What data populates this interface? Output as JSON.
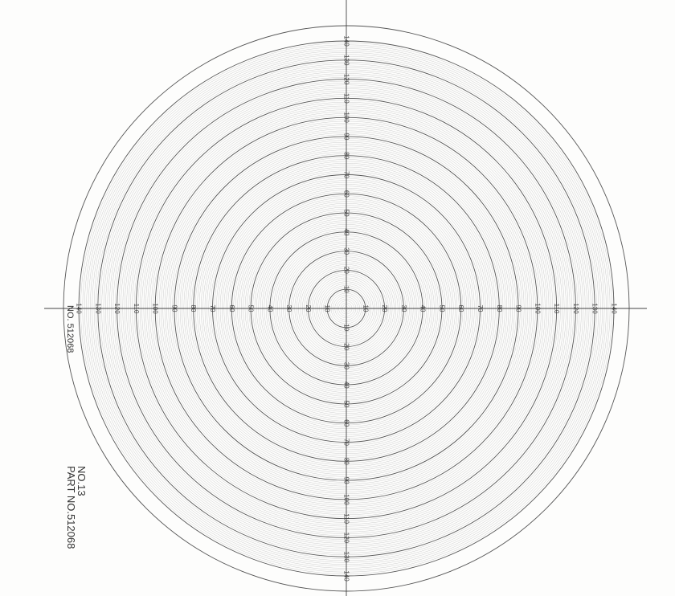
{
  "diagram": {
    "type": "concentric-circle-reticle",
    "ring_step_minor": 1,
    "ring_step_major": 10,
    "max_ring": 140,
    "major_ring_labels": [
      10,
      20,
      30,
      40,
      50,
      60,
      70,
      80,
      90,
      100,
      110,
      120,
      130,
      140
    ],
    "line_color": "#555555",
    "minor_line_color": "#b8b8b8"
  },
  "texts": {
    "left_part_number": "NO. 512068",
    "sheet_number": "NO.13",
    "part_number": "PART NO.512068"
  }
}
